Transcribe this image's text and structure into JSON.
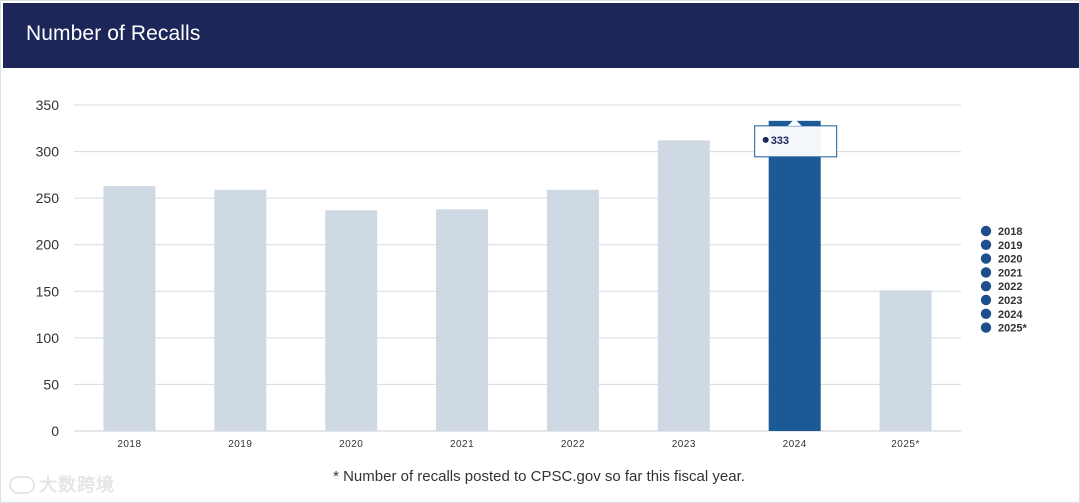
{
  "header": {
    "title": "Number of Recalls"
  },
  "footnote": "* Number of recalls posted to CPSC.gov so far this fiscal year.",
  "watermark": "大数跨境",
  "colors": {
    "header_bg": "#1c2659",
    "bar": "#cfd9e4",
    "bar_highlight": "#1b5a96",
    "legend_dot": "#1c4f8c",
    "grid": "#d5dbe3"
  },
  "tooltip": {
    "category": "2024",
    "value": "333"
  },
  "chart_data": {
    "type": "bar",
    "title": "Number of Recalls",
    "xlabel": "",
    "ylabel": "",
    "categories": [
      "2018",
      "2019",
      "2020",
      "2021",
      "2022",
      "2023",
      "2024",
      "2025*"
    ],
    "values": [
      263,
      259,
      237,
      238,
      259,
      312,
      333,
      151
    ],
    "highlight": "2024",
    "ylim": [
      0,
      350
    ],
    "yticks": [
      0,
      50,
      100,
      150,
      200,
      250,
      300,
      350
    ],
    "grid": true,
    "legend": {
      "position": "right",
      "entries": [
        "2018",
        "2019",
        "2020",
        "2021",
        "2022",
        "2023",
        "2024",
        "2025*"
      ]
    }
  }
}
